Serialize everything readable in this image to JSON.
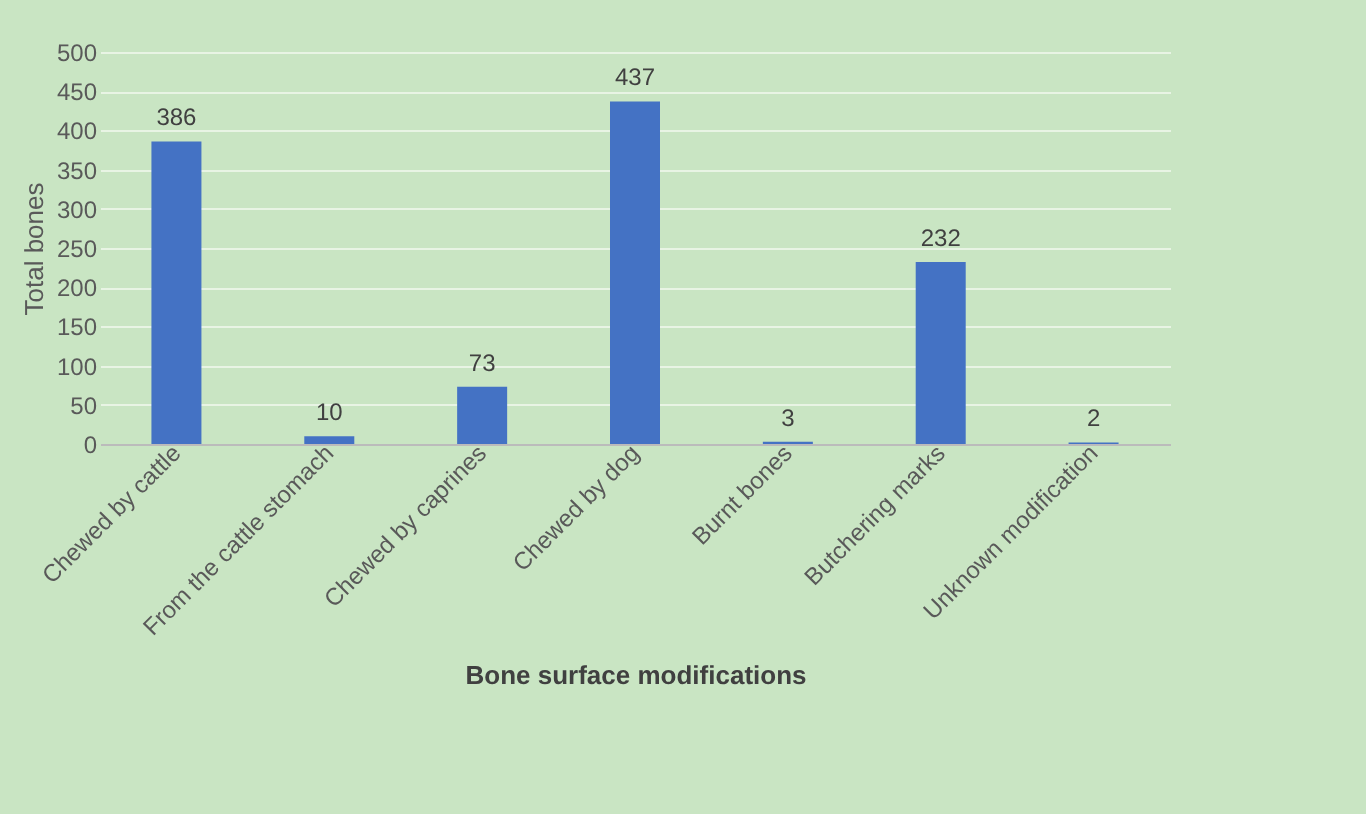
{
  "chart_data": {
    "type": "bar",
    "xlabel": "Bone surface modifications",
    "ylabel": "Total bones",
    "categories": [
      "Chewed by cattle",
      "From the cattle stomach",
      "Chewed by caprines",
      "Chewed by dog",
      "Burnt bones",
      "Butchering marks",
      "Unknown modification"
    ],
    "values": [
      386,
      10,
      73,
      437,
      3,
      232,
      2
    ],
    "color": "#4472c4",
    "data_labels": true,
    "ylim": [
      0,
      500
    ],
    "yticks": [
      0,
      50,
      100,
      150,
      200,
      250,
      300,
      350,
      400,
      450,
      500
    ],
    "grid": "y"
  }
}
